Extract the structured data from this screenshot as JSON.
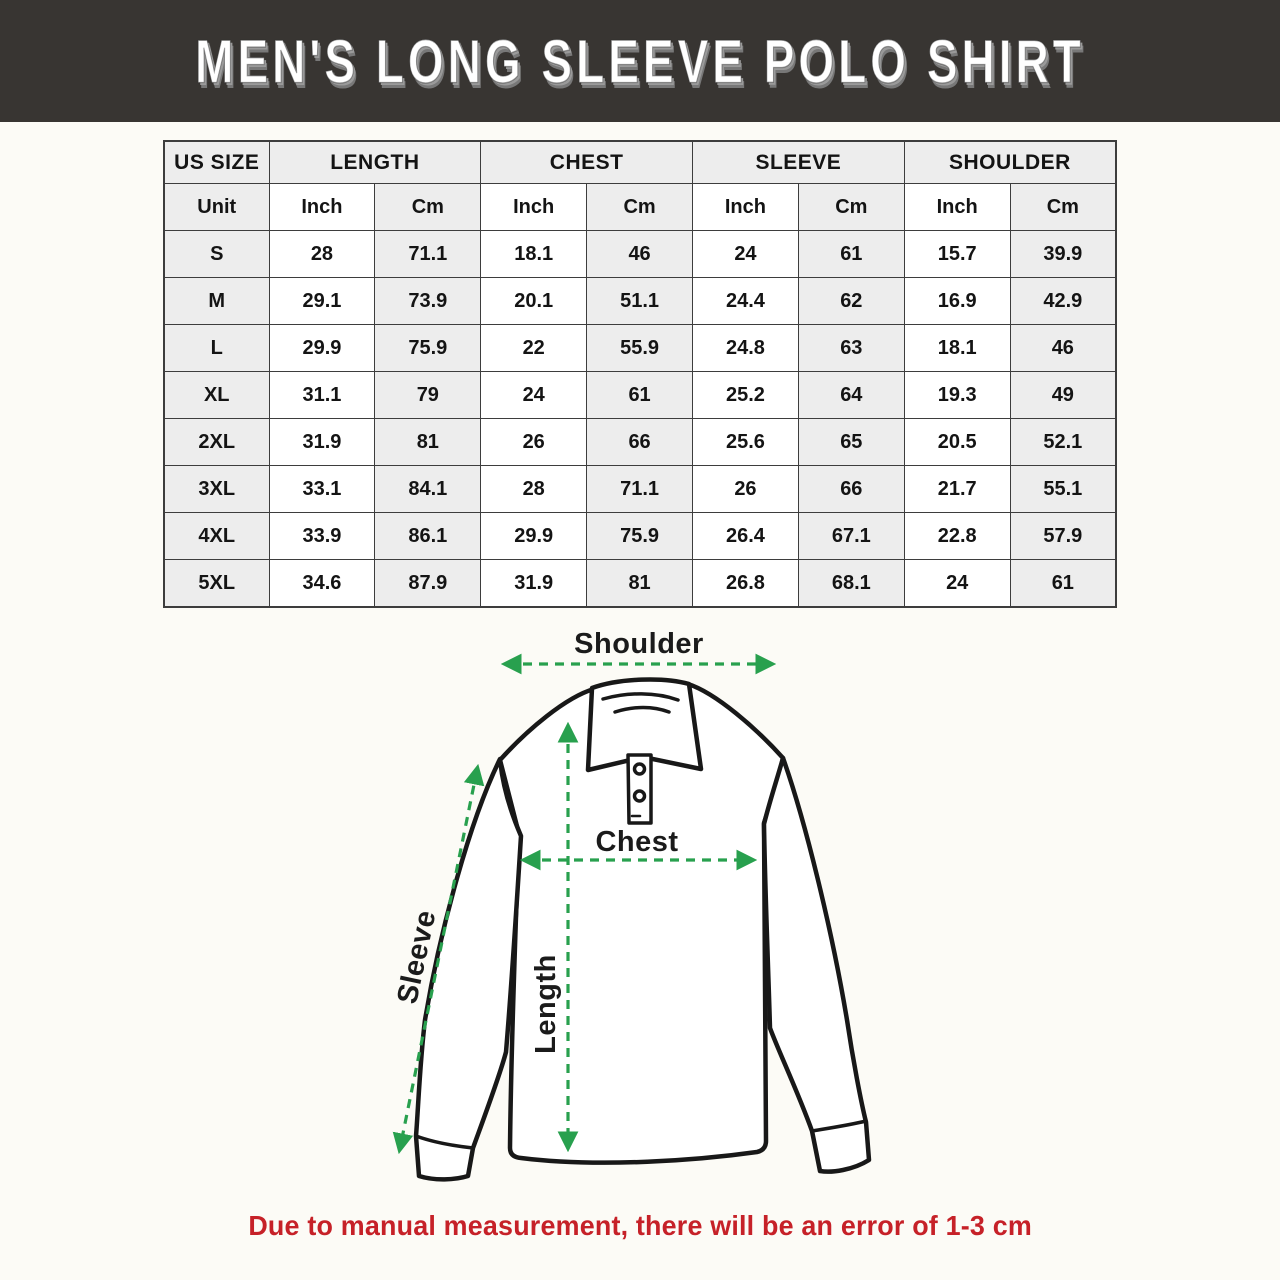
{
  "banner": {
    "title": "MEN'S LONG SLEEVE POLO SHIRT",
    "bg_color": "#383532",
    "text_color": "#ffffff"
  },
  "table": {
    "group_headers": [
      {
        "label": "US SIZE"
      },
      {
        "label": "LENGTH"
      },
      {
        "label": "CHEST"
      },
      {
        "label": "SLEEVE"
      },
      {
        "label": "SHOULDER"
      }
    ],
    "unit_row": [
      "Unit",
      "Inch",
      "Cm",
      "Inch",
      "Cm",
      "Inch",
      "Cm",
      "Inch",
      "Cm"
    ],
    "rows": [
      {
        "size": "S",
        "values": [
          "28",
          "71.1",
          "18.1",
          "46",
          "24",
          "61",
          "15.7",
          "39.9"
        ]
      },
      {
        "size": "M",
        "values": [
          "29.1",
          "73.9",
          "20.1",
          "51.1",
          "24.4",
          "62",
          "16.9",
          "42.9"
        ]
      },
      {
        "size": "L",
        "values": [
          "29.9",
          "75.9",
          "22",
          "55.9",
          "24.8",
          "63",
          "18.1",
          "46"
        ]
      },
      {
        "size": "XL",
        "values": [
          "31.1",
          "79",
          "24",
          "61",
          "25.2",
          "64",
          "19.3",
          "49"
        ]
      },
      {
        "size": "2XL",
        "values": [
          "31.9",
          "81",
          "26",
          "66",
          "25.6",
          "65",
          "20.5",
          "52.1"
        ]
      },
      {
        "size": "3XL",
        "values": [
          "33.1",
          "84.1",
          "28",
          "71.1",
          "26",
          "66",
          "21.7",
          "55.1"
        ]
      },
      {
        "size": "4XL",
        "values": [
          "33.9",
          "86.1",
          "29.9",
          "75.9",
          "26.4",
          "67.1",
          "22.8",
          "57.9"
        ]
      },
      {
        "size": "5XL",
        "values": [
          "34.6",
          "87.9",
          "31.9",
          "81",
          "26.8",
          "68.1",
          "24",
          "61"
        ]
      }
    ],
    "shade_color": "#ededed",
    "border_color": "#3d3d3d"
  },
  "diagram": {
    "labels": {
      "shoulder": "Shoulder",
      "chest": "Chest",
      "sleeve": "Sleeve",
      "length": "Length"
    },
    "arrow_color": "#28a04e",
    "outline_color": "#181818"
  },
  "footer": {
    "note": "Due to manual measurement, there will be an error of 1-3 cm",
    "color": "#c62128"
  }
}
